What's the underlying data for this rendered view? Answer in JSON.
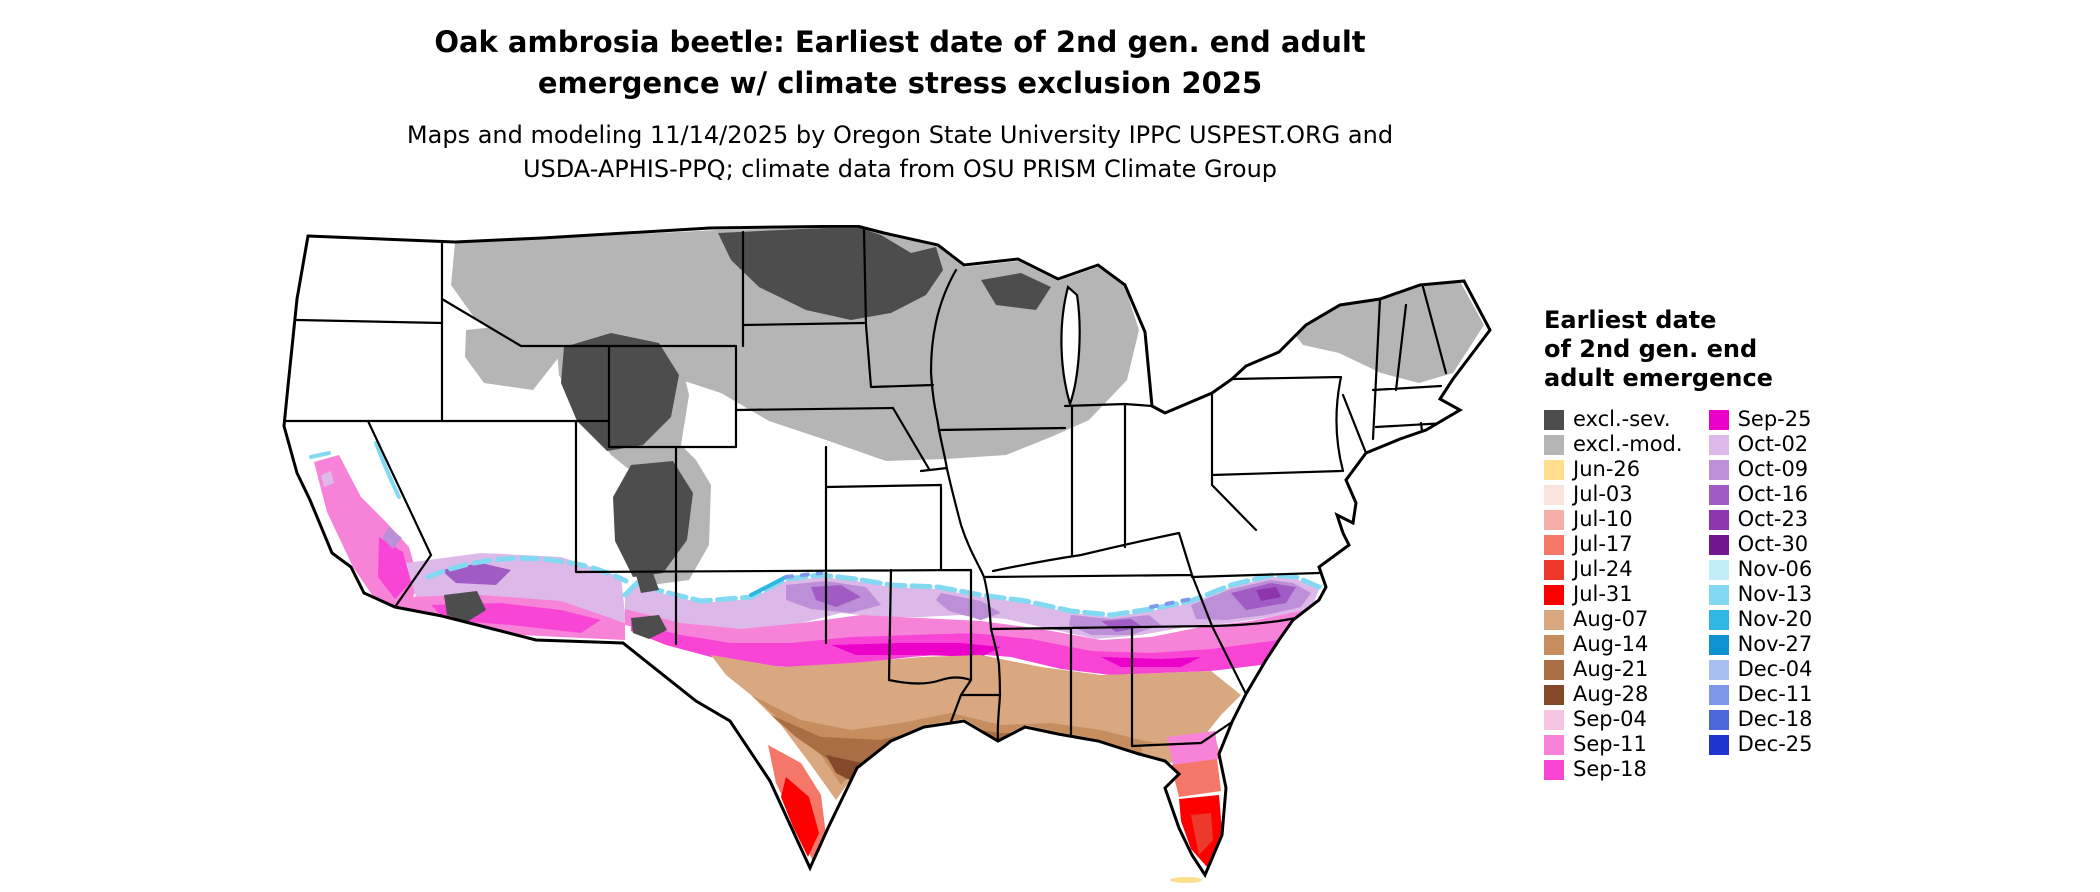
{
  "title_lines": [
    "Oak ambrosia beetle: Earliest date of 2nd gen. end adult",
    "emergence w/ climate stress exclusion 2025"
  ],
  "subtitle_lines": [
    "Maps and modeling 11/14/2025 by Oregon State University IPPC USPEST.ORG and",
    "USDA-APHIS-PPQ; climate data from OSU PRISM Climate Group"
  ],
  "legend": {
    "title_lines": [
      "Earliest date",
      "of 2nd gen. end",
      "adult emergence"
    ],
    "left": [
      {
        "label": "excl.-sev.",
        "key": "excl-sev"
      },
      {
        "label": "excl.-mod.",
        "key": "excl-mod"
      },
      {
        "label": "Jun-26",
        "key": "jun-26"
      },
      {
        "label": "Jul-03",
        "key": "jul-03"
      },
      {
        "label": "Jul-10",
        "key": "jul-10"
      },
      {
        "label": "Jul-17",
        "key": "jul-17"
      },
      {
        "label": "Jul-24",
        "key": "jul-24"
      },
      {
        "label": "Jul-31",
        "key": "jul-31"
      },
      {
        "label": "Aug-07",
        "key": "aug-07"
      },
      {
        "label": "Aug-14",
        "key": "aug-14"
      },
      {
        "label": "Aug-21",
        "key": "aug-21"
      },
      {
        "label": "Aug-28",
        "key": "aug-28"
      },
      {
        "label": "Sep-04",
        "key": "sep-04"
      },
      {
        "label": "Sep-11",
        "key": "sep-11"
      },
      {
        "label": "Sep-18",
        "key": "sep-18"
      }
    ],
    "right": [
      {
        "label": "Sep-25",
        "key": "sep-25"
      },
      {
        "label": "Oct-02",
        "key": "oct-02"
      },
      {
        "label": "Oct-09",
        "key": "oct-09"
      },
      {
        "label": "Oct-16",
        "key": "oct-16"
      },
      {
        "label": "Oct-23",
        "key": "oct-23"
      },
      {
        "label": "Oct-30",
        "key": "oct-30"
      },
      {
        "label": "Nov-06",
        "key": "nov-06"
      },
      {
        "label": "Nov-13",
        "key": "nov-13"
      },
      {
        "label": "Nov-20",
        "key": "nov-20"
      },
      {
        "label": "Nov-27",
        "key": "nov-27"
      },
      {
        "label": "Dec-04",
        "key": "dec-04"
      },
      {
        "label": "Dec-11",
        "key": "dec-11"
      },
      {
        "label": "Dec-18",
        "key": "dec-18"
      },
      {
        "label": "Dec-25",
        "key": "dec-25"
      }
    ]
  },
  "palette": {
    "excl-sev": "#4d4d4d",
    "excl-mod": "#b5b5b5",
    "jun-26": "#fedd8d",
    "jul-03": "#fbe3de",
    "jul-10": "#f7aea6",
    "jul-17": "#f4776a",
    "jul-24": "#ed392b",
    "jul-31": "#fd0100",
    "aug-07": "#d9a880",
    "aug-14": "#c68d5f",
    "aug-21": "#a96e44",
    "aug-28": "#83492a",
    "sep-04": "#f6c5e2",
    "sep-11": "#f783d8",
    "sep-18": "#f945d6",
    "sep-25": "#ec01cb",
    "oct-02": "#dcb9e8",
    "oct-09": "#bd8fd8",
    "oct-16": "#a05cc4",
    "oct-23": "#8c35ad",
    "oct-30": "#731790",
    "nov-06": "#c2eefa",
    "nov-13": "#83d9f2",
    "nov-20": "#2eb7e4",
    "nov-27": "#0e93d0",
    "dec-04": "#a8bff2",
    "dec-11": "#7e99ea",
    "dec-18": "#4d66da",
    "dec-25": "#2033cf"
  },
  "map": {
    "outline_color": "#000000",
    "background": "#ffffff"
  }
}
